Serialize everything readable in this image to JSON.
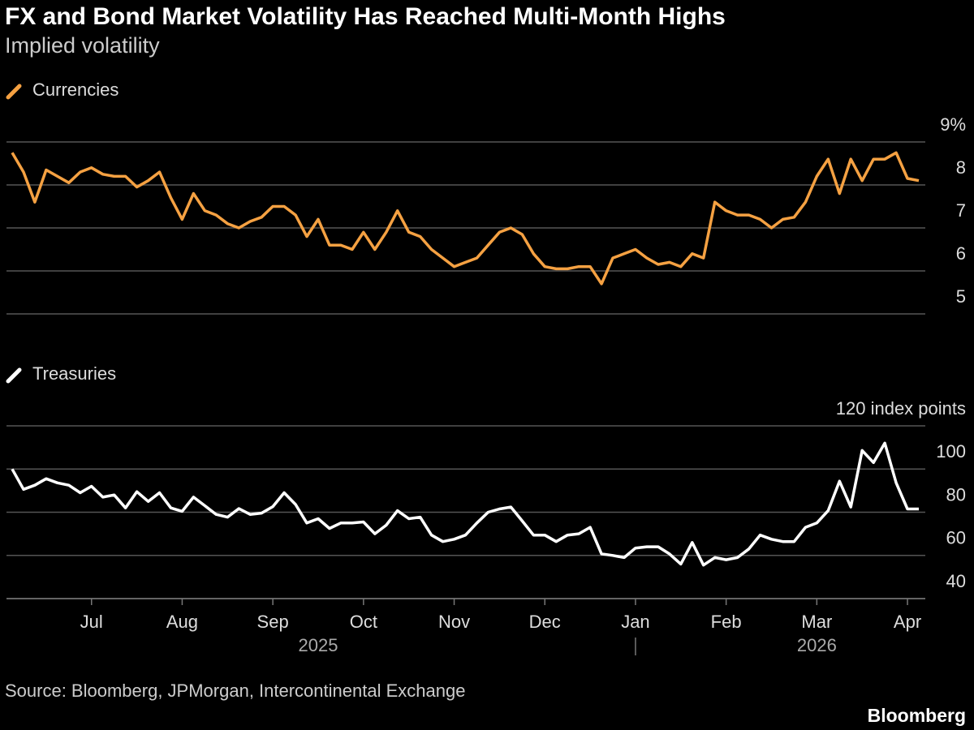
{
  "title": "FX and Bond Market Volatility Has Reached Multi-Month Highs",
  "subtitle": "Implied volatility",
  "chart_data": [
    {
      "type": "line",
      "series": [
        {
          "name": "Currencies",
          "color": "#f5a142",
          "values": [
            8.75,
            8.3,
            7.6,
            8.35,
            8.2,
            8.05,
            8.3,
            8.4,
            8.25,
            8.2,
            8.2,
            7.95,
            8.1,
            8.3,
            7.7,
            7.2,
            7.8,
            7.4,
            7.3,
            7.1,
            7.0,
            7.15,
            7.25,
            7.5,
            7.5,
            7.3,
            6.8,
            7.2,
            6.6,
            6.6,
            6.5,
            6.9,
            6.5,
            6.9,
            7.4,
            6.9,
            6.8,
            6.5,
            6.3,
            6.1,
            6.2,
            6.3,
            6.6,
            6.9,
            7.0,
            6.85,
            6.4,
            6.1,
            6.05,
            6.05,
            6.1,
            6.1,
            5.7,
            6.3,
            6.4,
            6.5,
            6.3,
            6.15,
            6.2,
            6.1,
            6.4,
            6.3,
            7.6,
            7.4,
            7.3,
            7.3,
            7.2,
            7.0,
            7.2,
            7.25,
            7.6,
            8.2,
            8.6,
            7.8,
            8.6,
            8.1,
            8.6,
            8.6,
            8.75,
            8.15,
            8.1
          ]
        }
      ],
      "ylim": [
        5,
        9
      ],
      "yticks": [
        {
          "value": 9,
          "label": "9%"
        },
        8,
        7,
        6,
        5
      ],
      "grid": true
    },
    {
      "type": "line",
      "series": [
        {
          "name": "Treasuries",
          "color": "#ffffff",
          "values": [
            100,
            90.6,
            92.5,
            95.5,
            93.6,
            92.5,
            89,
            92,
            87,
            88,
            82,
            89.5,
            85,
            89,
            82,
            80.4,
            87,
            83,
            79,
            77.7,
            81.7,
            79,
            79.6,
            82.6,
            89,
            83.6,
            75,
            77,
            72.5,
            75,
            75,
            75.5,
            70,
            74,
            80.7,
            77,
            77.7,
            69.4,
            66.4,
            67.5,
            69.4,
            75,
            80,
            81.5,
            82.4,
            76,
            69.4,
            69.4,
            66.4,
            69.4,
            70,
            73,
            60.7,
            60,
            59,
            63.4,
            64,
            64,
            60.7,
            56,
            66,
            55.5,
            59,
            58,
            59,
            63,
            69.4,
            67.5,
            66.4,
            66.4,
            73,
            75,
            80.7,
            94.4,
            82.4,
            108.6,
            103,
            112,
            93.6,
            81.5,
            81.5
          ]
        }
      ],
      "categories": [
        null,
        null,
        null,
        null,
        null,
        null,
        null,
        "Jul",
        null,
        null,
        null,
        null,
        null,
        null,
        null,
        "Aug",
        null,
        null,
        null,
        null,
        null,
        null,
        null,
        "Sep",
        null,
        null,
        null,
        null,
        null,
        null,
        null,
        "Oct",
        null,
        null,
        null,
        null,
        null,
        null,
        null,
        "Nov",
        null,
        null,
        null,
        null,
        null,
        null,
        null,
        "Dec",
        null,
        null,
        null,
        null,
        null,
        null,
        null,
        "Jan",
        null,
        null,
        null,
        null,
        null,
        null,
        null,
        "Feb",
        null,
        null,
        null,
        null,
        null,
        null,
        null,
        "Mar",
        null,
        null,
        null,
        null,
        null,
        null,
        null,
        "Apr",
        null
      ],
      "x_group_labels": [
        "2025",
        "2026"
      ],
      "ylim": [
        40,
        120
      ],
      "yticks": [
        {
          "value": 120,
          "label": "120 index points"
        },
        100,
        80,
        60,
        40
      ],
      "grid": true
    }
  ],
  "source": "Source: Bloomberg, JPMorgan, Intercontinental Exchange",
  "brand": "Bloomberg"
}
